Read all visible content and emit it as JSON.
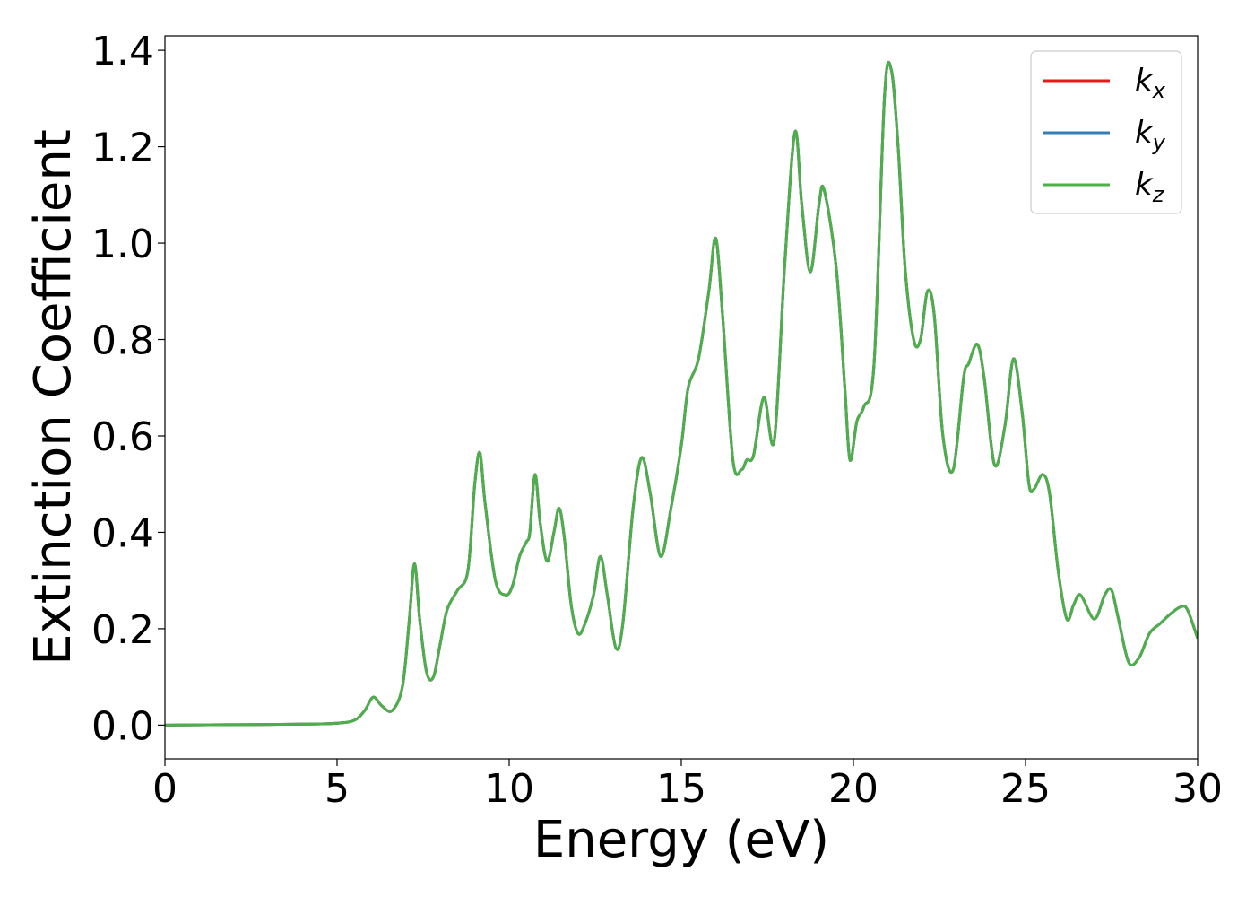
{
  "chart_data": {
    "type": "line",
    "title": "",
    "xlabel": "Energy (eV)",
    "ylabel": "Extinction Coefficient",
    "xlim": [
      0,
      30
    ],
    "ylim": [
      -0.07,
      1.43
    ],
    "xticks": [
      0,
      5,
      10,
      15,
      20,
      25,
      30
    ],
    "xtick_labels": [
      "0",
      "5",
      "10",
      "15",
      "20",
      "25",
      "30"
    ],
    "yticks": [
      0.0,
      0.2,
      0.4,
      0.6,
      0.8,
      1.0,
      1.2,
      1.4
    ],
    "ytick_labels": [
      "0.0",
      "0.2",
      "0.4",
      "0.6",
      "0.8",
      "1.0",
      "1.2",
      "1.4"
    ],
    "grid": false,
    "legend_position": "top-right",
    "series": [
      {
        "name": "k_x",
        "legend_base": "k",
        "legend_sub": "x",
        "color": "#e41a1c",
        "x": [
          0,
          2,
          4,
          5,
          5.5,
          5.8,
          6.05,
          6.3,
          6.6,
          6.9,
          7.1,
          7.25,
          7.4,
          7.6,
          7.8,
          8.0,
          8.2,
          8.5,
          8.8,
          9.0,
          9.15,
          9.3,
          9.6,
          9.9,
          10.1,
          10.3,
          10.5,
          10.6,
          10.75,
          10.9,
          11.1,
          11.3,
          11.45,
          11.6,
          11.8,
          12.0,
          12.2,
          12.45,
          12.65,
          12.85,
          13.1,
          13.3,
          13.6,
          13.85,
          14.1,
          14.4,
          14.7,
          15.0,
          15.2,
          15.5,
          15.8,
          16.0,
          16.2,
          16.5,
          16.75,
          16.9,
          17.1,
          17.4,
          17.7,
          18.0,
          18.3,
          18.5,
          18.75,
          19.0,
          19.15,
          19.5,
          19.75,
          19.9,
          20.1,
          20.3,
          20.6,
          20.9,
          21.1,
          21.3,
          21.5,
          21.75,
          21.95,
          22.15,
          22.35,
          22.6,
          22.9,
          23.2,
          23.35,
          23.6,
          23.8,
          24.1,
          24.4,
          24.65,
          24.9,
          25.1,
          25.25,
          25.5,
          25.7,
          25.95,
          26.2,
          26.4,
          26.6,
          27.0,
          27.3,
          27.5,
          27.7,
          28.0,
          28.3,
          28.6,
          28.9,
          29.2,
          29.5,
          29.7,
          30.0
        ],
        "y": [
          0.0,
          0.001,
          0.002,
          0.004,
          0.01,
          0.03,
          0.058,
          0.04,
          0.03,
          0.08,
          0.22,
          0.335,
          0.22,
          0.11,
          0.1,
          0.17,
          0.24,
          0.28,
          0.32,
          0.5,
          0.565,
          0.46,
          0.3,
          0.27,
          0.29,
          0.35,
          0.38,
          0.4,
          0.52,
          0.42,
          0.34,
          0.4,
          0.45,
          0.39,
          0.25,
          0.19,
          0.21,
          0.27,
          0.35,
          0.27,
          0.16,
          0.21,
          0.45,
          0.555,
          0.48,
          0.35,
          0.45,
          0.58,
          0.7,
          0.76,
          0.9,
          1.01,
          0.85,
          0.55,
          0.53,
          0.55,
          0.56,
          0.68,
          0.59,
          0.95,
          1.23,
          1.08,
          0.94,
          1.08,
          1.11,
          0.95,
          0.7,
          0.55,
          0.63,
          0.66,
          0.75,
          1.3,
          1.36,
          1.2,
          0.95,
          0.8,
          0.8,
          0.9,
          0.85,
          0.6,
          0.53,
          0.72,
          0.75,
          0.79,
          0.72,
          0.54,
          0.62,
          0.76,
          0.65,
          0.5,
          0.49,
          0.52,
          0.48,
          0.32,
          0.22,
          0.25,
          0.27,
          0.22,
          0.27,
          0.28,
          0.22,
          0.13,
          0.14,
          0.19,
          0.21,
          0.23,
          0.245,
          0.24,
          0.18
        ]
      },
      {
        "name": "k_y",
        "legend_base": "k",
        "legend_sub": "y",
        "color": "#377eb8",
        "x": [
          0,
          2,
          4,
          5,
          5.5,
          5.8,
          6.05,
          6.3,
          6.6,
          6.9,
          7.1,
          7.25,
          7.4,
          7.6,
          7.8,
          8.0,
          8.2,
          8.5,
          8.8,
          9.0,
          9.15,
          9.3,
          9.6,
          9.9,
          10.1,
          10.3,
          10.5,
          10.6,
          10.75,
          10.9,
          11.1,
          11.3,
          11.45,
          11.6,
          11.8,
          12.0,
          12.2,
          12.45,
          12.65,
          12.85,
          13.1,
          13.3,
          13.6,
          13.85,
          14.1,
          14.4,
          14.7,
          15.0,
          15.2,
          15.5,
          15.8,
          16.0,
          16.2,
          16.5,
          16.75,
          16.9,
          17.1,
          17.4,
          17.7,
          18.0,
          18.3,
          18.5,
          18.75,
          19.0,
          19.15,
          19.5,
          19.75,
          19.9,
          20.1,
          20.3,
          20.6,
          20.9,
          21.1,
          21.3,
          21.5,
          21.75,
          21.95,
          22.15,
          22.35,
          22.6,
          22.9,
          23.2,
          23.35,
          23.6,
          23.8,
          24.1,
          24.4,
          24.65,
          24.9,
          25.1,
          25.25,
          25.5,
          25.7,
          25.95,
          26.2,
          26.4,
          26.6,
          27.0,
          27.3,
          27.5,
          27.7,
          28.0,
          28.3,
          28.6,
          28.9,
          29.2,
          29.5,
          29.7,
          30.0
        ],
        "y": [
          0.0,
          0.001,
          0.002,
          0.004,
          0.01,
          0.03,
          0.058,
          0.04,
          0.03,
          0.08,
          0.22,
          0.335,
          0.22,
          0.11,
          0.1,
          0.17,
          0.24,
          0.28,
          0.32,
          0.5,
          0.565,
          0.46,
          0.3,
          0.27,
          0.29,
          0.35,
          0.38,
          0.4,
          0.52,
          0.42,
          0.34,
          0.4,
          0.45,
          0.39,
          0.25,
          0.19,
          0.21,
          0.27,
          0.35,
          0.27,
          0.16,
          0.21,
          0.45,
          0.555,
          0.48,
          0.35,
          0.45,
          0.58,
          0.7,
          0.76,
          0.9,
          1.01,
          0.85,
          0.55,
          0.53,
          0.55,
          0.56,
          0.68,
          0.59,
          0.95,
          1.23,
          1.08,
          0.94,
          1.08,
          1.11,
          0.95,
          0.7,
          0.55,
          0.63,
          0.66,
          0.75,
          1.3,
          1.36,
          1.2,
          0.95,
          0.8,
          0.8,
          0.9,
          0.85,
          0.6,
          0.53,
          0.72,
          0.75,
          0.79,
          0.72,
          0.54,
          0.62,
          0.76,
          0.65,
          0.5,
          0.49,
          0.52,
          0.48,
          0.32,
          0.22,
          0.25,
          0.27,
          0.22,
          0.27,
          0.28,
          0.22,
          0.13,
          0.14,
          0.19,
          0.21,
          0.23,
          0.245,
          0.24,
          0.18
        ]
      },
      {
        "name": "k_z",
        "legend_base": "k",
        "legend_sub": "z",
        "color": "#4daf4a",
        "x": [
          0,
          2,
          4,
          5,
          5.5,
          5.8,
          6.05,
          6.3,
          6.6,
          6.9,
          7.1,
          7.25,
          7.4,
          7.6,
          7.8,
          8.0,
          8.2,
          8.5,
          8.8,
          9.0,
          9.15,
          9.3,
          9.6,
          9.9,
          10.1,
          10.3,
          10.5,
          10.6,
          10.75,
          10.9,
          11.1,
          11.3,
          11.45,
          11.6,
          11.8,
          12.0,
          12.2,
          12.45,
          12.65,
          12.85,
          13.1,
          13.3,
          13.6,
          13.85,
          14.1,
          14.4,
          14.7,
          15.0,
          15.2,
          15.5,
          15.8,
          16.0,
          16.2,
          16.5,
          16.75,
          16.9,
          17.1,
          17.4,
          17.7,
          18.0,
          18.3,
          18.5,
          18.75,
          19.0,
          19.15,
          19.5,
          19.75,
          19.9,
          20.1,
          20.3,
          20.6,
          20.9,
          21.1,
          21.3,
          21.5,
          21.75,
          21.95,
          22.15,
          22.35,
          22.6,
          22.9,
          23.2,
          23.35,
          23.6,
          23.8,
          24.1,
          24.4,
          24.65,
          24.9,
          25.1,
          25.25,
          25.5,
          25.7,
          25.95,
          26.2,
          26.4,
          26.6,
          27.0,
          27.3,
          27.5,
          27.7,
          28.0,
          28.3,
          28.6,
          28.9,
          29.2,
          29.5,
          29.7,
          30.0
        ],
        "y": [
          0.0,
          0.001,
          0.002,
          0.004,
          0.01,
          0.03,
          0.058,
          0.04,
          0.03,
          0.08,
          0.22,
          0.335,
          0.22,
          0.11,
          0.1,
          0.17,
          0.24,
          0.28,
          0.32,
          0.5,
          0.565,
          0.46,
          0.3,
          0.27,
          0.29,
          0.35,
          0.38,
          0.4,
          0.52,
          0.42,
          0.34,
          0.4,
          0.45,
          0.39,
          0.25,
          0.19,
          0.21,
          0.27,
          0.35,
          0.27,
          0.16,
          0.21,
          0.45,
          0.555,
          0.48,
          0.35,
          0.45,
          0.58,
          0.7,
          0.76,
          0.9,
          1.01,
          0.85,
          0.55,
          0.53,
          0.55,
          0.56,
          0.68,
          0.59,
          0.95,
          1.23,
          1.08,
          0.94,
          1.08,
          1.11,
          0.95,
          0.7,
          0.55,
          0.63,
          0.66,
          0.75,
          1.3,
          1.36,
          1.2,
          0.95,
          0.8,
          0.8,
          0.9,
          0.85,
          0.6,
          0.53,
          0.72,
          0.75,
          0.79,
          0.72,
          0.54,
          0.62,
          0.76,
          0.65,
          0.5,
          0.49,
          0.52,
          0.48,
          0.32,
          0.22,
          0.25,
          0.27,
          0.22,
          0.27,
          0.28,
          0.22,
          0.13,
          0.14,
          0.19,
          0.21,
          0.23,
          0.245,
          0.24,
          0.18
        ]
      }
    ]
  }
}
